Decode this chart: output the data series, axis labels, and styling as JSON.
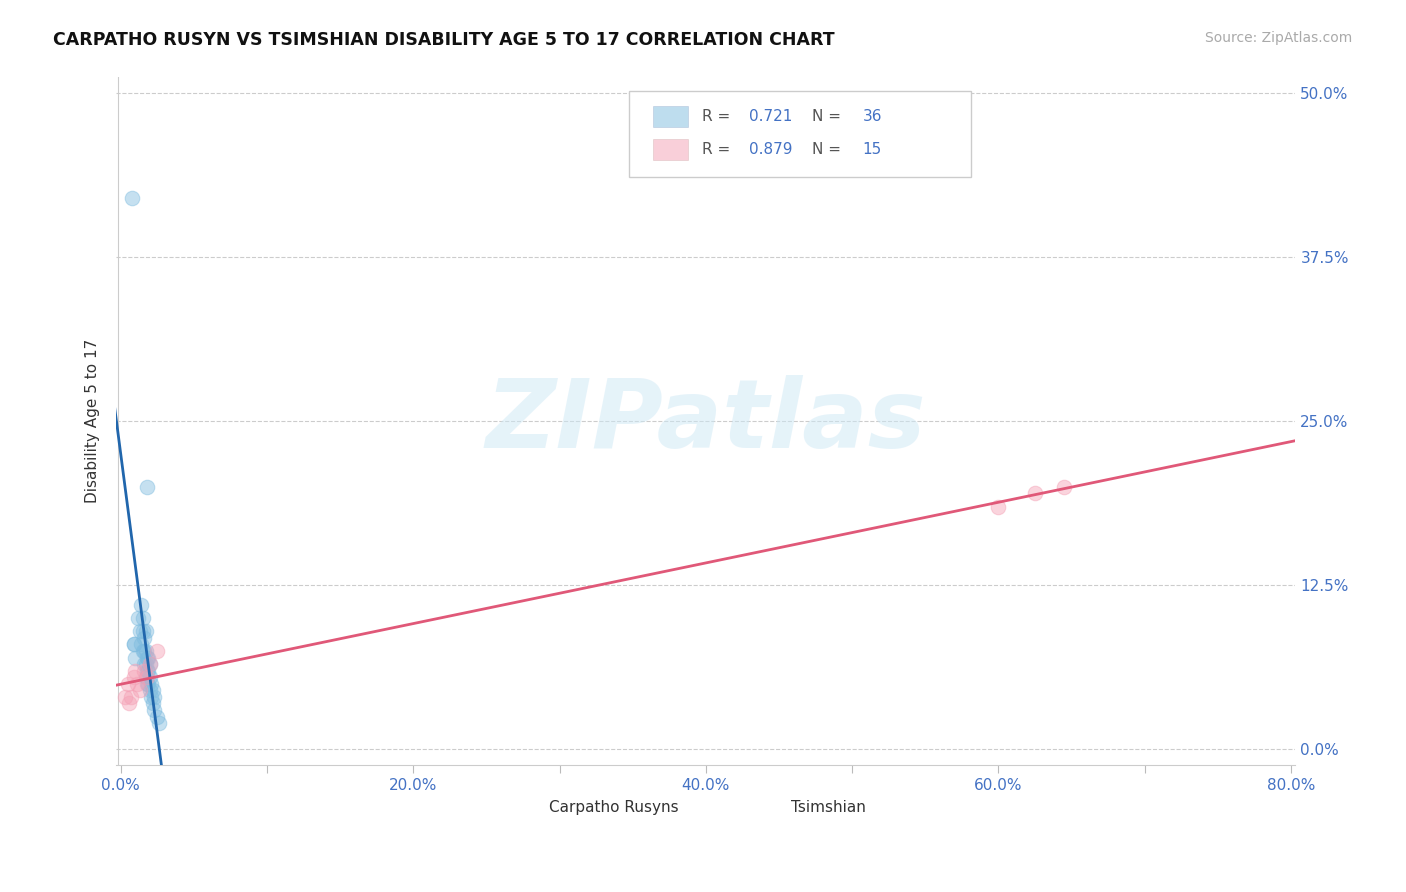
{
  "title": "CARPATHO RUSYN VS TSIMSHIAN DISABILITY AGE 5 TO 17 CORRELATION CHART",
  "source": "Source: ZipAtlas.com",
  "ylabel": "Disability Age 5 to 17",
  "xlim": [
    -0.003,
    0.803
  ],
  "ylim": [
    -0.012,
    0.512
  ],
  "xticks": [
    0.0,
    0.1,
    0.2,
    0.3,
    0.4,
    0.5,
    0.6,
    0.7,
    0.8
  ],
  "xtick_labels": [
    "0.0%",
    "",
    "20.0%",
    "",
    "40.0%",
    "",
    "60.0%",
    "",
    "80.0%"
  ],
  "yticks": [
    0.0,
    0.125,
    0.25,
    0.375,
    0.5
  ],
  "ytick_labels": [
    "0.0%",
    "12.5%",
    "25.0%",
    "37.5%",
    "50.0%"
  ],
  "carpatho_R": 0.721,
  "carpatho_N": 36,
  "tsimshian_R": 0.879,
  "tsimshian_N": 15,
  "carpatho_color": "#7fbcdf",
  "tsimshian_color": "#f4a0b5",
  "carpatho_line_color": "#2166ac",
  "tsimshian_line_color": "#e05878",
  "watermark_color": "#cde8f5",
  "background_color": "#ffffff",
  "carpatho_x": [
    0.008,
    0.009,
    0.01,
    0.012,
    0.013,
    0.014,
    0.014,
    0.015,
    0.015,
    0.015,
    0.016,
    0.016,
    0.016,
    0.017,
    0.017,
    0.017,
    0.017,
    0.018,
    0.018,
    0.018,
    0.019,
    0.019,
    0.019,
    0.02,
    0.02,
    0.02,
    0.021,
    0.021,
    0.022,
    0.022,
    0.023,
    0.023,
    0.025,
    0.026,
    0.009,
    0.018
  ],
  "carpatho_y": [
    0.42,
    0.08,
    0.07,
    0.1,
    0.09,
    0.11,
    0.08,
    0.075,
    0.09,
    0.1,
    0.065,
    0.075,
    0.085,
    0.055,
    0.065,
    0.075,
    0.09,
    0.05,
    0.06,
    0.07,
    0.05,
    0.06,
    0.07,
    0.045,
    0.055,
    0.065,
    0.04,
    0.05,
    0.035,
    0.045,
    0.03,
    0.04,
    0.025,
    0.02,
    0.08,
    0.2
  ],
  "tsimshian_x": [
    0.003,
    0.005,
    0.006,
    0.007,
    0.009,
    0.01,
    0.011,
    0.013,
    0.016,
    0.018,
    0.02,
    0.025,
    0.6,
    0.625,
    0.645
  ],
  "tsimshian_y": [
    0.04,
    0.05,
    0.035,
    0.04,
    0.055,
    0.06,
    0.05,
    0.045,
    0.06,
    0.055,
    0.065,
    0.075,
    0.185,
    0.195,
    0.2
  ]
}
